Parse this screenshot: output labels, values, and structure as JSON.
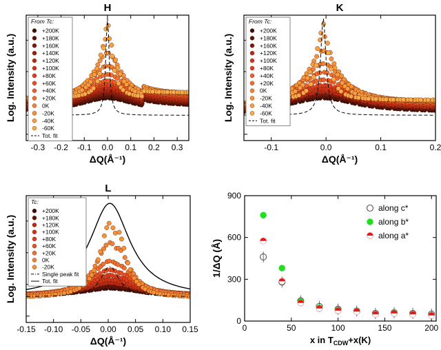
{
  "chart_data": [
    {
      "type": "scatter",
      "title": "H",
      "xlabel": "ΔQ(Å⁻¹)",
      "ylabel": "Log. Intensity (a.u.)",
      "xlim": [
        -0.35,
        0.35
      ],
      "xticks": [
        "-0.3",
        "-0.2",
        "-0.1",
        "0.0",
        "0.1",
        "0.2",
        "0.3"
      ],
      "yscale": "log",
      "legend_title": "From Tc:",
      "legend_position": "top-left",
      "peak_center": 0.0,
      "series": [
        {
          "name": "+200K",
          "color": "#3a0c08",
          "peak_height": 0.28
        },
        {
          "name": "+180K",
          "color": "#5a120a",
          "peak_height": 0.3
        },
        {
          "name": "+160K",
          "color": "#7a1a0c",
          "peak_height": 0.32
        },
        {
          "name": "+140K",
          "color": "#9a200f",
          "peak_height": 0.34
        },
        {
          "name": "+120K",
          "color": "#b82a14",
          "peak_height": 0.36
        },
        {
          "name": "+100K",
          "color": "#cf3318",
          "peak_height": 0.38
        },
        {
          "name": "+80K",
          "color": "#e03c1c",
          "peak_height": 0.4
        },
        {
          "name": "+60K",
          "color": "#e85020",
          "peak_height": 0.42
        },
        {
          "name": "+40K",
          "color": "#ee6026",
          "peak_height": 0.44
        },
        {
          "name": "+20K",
          "color": "#f2702c",
          "peak_height": 0.5
        },
        {
          "name": "0K",
          "color": "#f48232",
          "peak_height": 0.58
        },
        {
          "name": "-20K",
          "color": "#f69238",
          "peak_height": 0.7
        },
        {
          "name": "-40K",
          "color": "#f8a040",
          "peak_height": 0.85
        },
        {
          "name": "-60K",
          "color": "#f9ab48",
          "peak_height": 0.97
        }
      ],
      "fit_labels": [
        "Tot. fit"
      ]
    },
    {
      "type": "scatter",
      "title": "K",
      "xlabel": "ΔQ(Å⁻¹)",
      "ylabel": "Log. Intensity (a.u.)",
      "xlim": [
        -0.15,
        0.2
      ],
      "xticks": [
        "-0.1",
        "0.0",
        "0.1",
        "0.2"
      ],
      "yscale": "log",
      "legend_title": "From Tc:",
      "legend_position": "top-left",
      "peak_center": -0.005,
      "series": [
        {
          "name": "+200K",
          "color": "#3a0c08",
          "peak_height": 0.28
        },
        {
          "name": "+180K",
          "color": "#5a120a",
          "peak_height": 0.3
        },
        {
          "name": "+160K",
          "color": "#7a1a0c",
          "peak_height": 0.32
        },
        {
          "name": "+120K",
          "color": "#b82a14",
          "peak_height": 0.34
        },
        {
          "name": "+100K",
          "color": "#cf3318",
          "peak_height": 0.37
        },
        {
          "name": "+80K",
          "color": "#e03c1c",
          "peak_height": 0.4
        },
        {
          "name": "+40K",
          "color": "#ee6026",
          "peak_height": 0.45
        },
        {
          "name": "+20K",
          "color": "#f2702c",
          "peak_height": 0.52
        },
        {
          "name": "0K",
          "color": "#f48232",
          "peak_height": 0.6
        },
        {
          "name": "-20K",
          "color": "#f69238",
          "peak_height": 0.72
        },
        {
          "name": "-40K",
          "color": "#f8a040",
          "peak_height": 0.86
        },
        {
          "name": "-60K",
          "color": "#f9ab48",
          "peak_height": 0.97
        }
      ],
      "fit_labels": [
        "Tot. fit"
      ]
    },
    {
      "type": "scatter",
      "title": "L",
      "xlabel": "ΔQ(Å⁻¹)",
      "ylabel": "Log. Intensity (a.u.)",
      "xlim": [
        -0.15,
        0.15
      ],
      "xticks": [
        "-0.15",
        "-0.10",
        "-0.05",
        "0.00",
        "0.05",
        "0.10",
        "0.15"
      ],
      "yscale": "log",
      "legend_title": "Tc:",
      "legend_position": "top-left",
      "peak_center": 0.003,
      "second_peak": 0.017,
      "series": [
        {
          "name": "+200K",
          "color": "#3a0c08",
          "peak_height": 0.2
        },
        {
          "name": "+180K",
          "color": "#5a120a",
          "peak_height": 0.22
        },
        {
          "name": "+120K",
          "color": "#b82a14",
          "peak_height": 0.25
        },
        {
          "name": "+100K",
          "color": "#cf3318",
          "peak_height": 0.28
        },
        {
          "name": "+80K",
          "color": "#e03c1c",
          "peak_height": 0.32
        },
        {
          "name": "+60K",
          "color": "#e85020",
          "peak_height": 0.37
        },
        {
          "name": "+20K",
          "color": "#f2702c",
          "peak_height": 0.45
        },
        {
          "name": "0K",
          "color": "#f48232",
          "peak_height": 0.62
        },
        {
          "name": "-20K",
          "color": "#f69238",
          "peak_height": 0.8
        }
      ],
      "fit_labels": [
        "Single peak fit",
        "Tot. fit"
      ]
    },
    {
      "type": "scatter",
      "title": "",
      "xlabel": "x in T_CDW+x(K)",
      "ylabel": "1/ΔQ (Å)",
      "xlim": [
        0,
        205
      ],
      "ylim": [
        0,
        900
      ],
      "xticks": [
        0,
        50,
        100,
        150,
        200
      ],
      "yticks": [
        0,
        300,
        600,
        900
      ],
      "legend_position": "top-right",
      "series": [
        {
          "name": "along c*",
          "style": "open",
          "color": "#555555",
          "points": [
            [
              20,
              460
            ],
            [
              40,
              280
            ],
            [
              60,
              145
            ],
            [
              80,
              105
            ],
            [
              100,
              85
            ],
            [
              120,
              72
            ],
            [
              140,
              55
            ],
            [
              160,
              60
            ],
            [
              180,
              55
            ],
            [
              200,
              50
            ]
          ]
        },
        {
          "name": "along b*",
          "style": "filled",
          "color": "#22dd22",
          "points": [
            [
              20,
              760
            ],
            [
              40,
              380
            ],
            [
              60,
              140
            ],
            [
              80,
              95
            ],
            [
              100,
              80
            ],
            [
              120,
              70
            ],
            [
              140,
              50
            ],
            [
              160,
              58
            ],
            [
              180,
              50
            ],
            [
              200,
              42
            ]
          ]
        },
        {
          "name": "along a*",
          "style": "half",
          "color": "#e81818",
          "points": [
            [
              20,
              575
            ],
            [
              40,
              285
            ],
            [
              60,
              130
            ],
            [
              80,
              90
            ],
            [
              100,
              75
            ],
            [
              120,
              68
            ],
            [
              140,
              48
            ],
            [
              160,
              55
            ],
            [
              180,
              48
            ],
            [
              200,
              40
            ]
          ]
        }
      ]
    }
  ]
}
